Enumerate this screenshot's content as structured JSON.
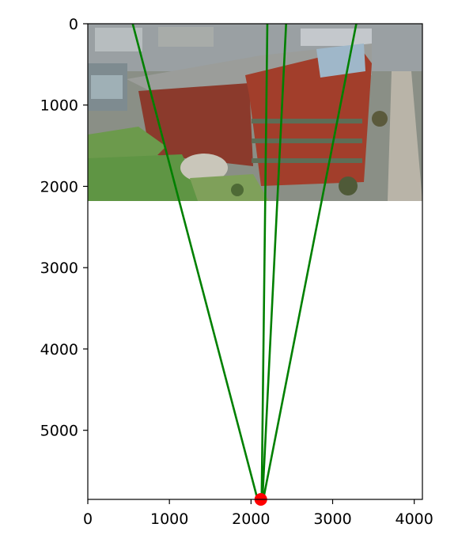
{
  "chart_data": {
    "type": "line",
    "title": "",
    "xlabel": "",
    "ylabel": "",
    "xlim": [
      0,
      4100
    ],
    "ylim": [
      5850,
      0
    ],
    "y_inverted": true,
    "xticks": [
      0,
      1000,
      2000,
      3000,
      4000
    ],
    "yticks": [
      0,
      1000,
      2000,
      3000,
      4000,
      5000
    ],
    "xtick_labels": [
      "0",
      "1000",
      "2000",
      "3000",
      "4000"
    ],
    "ytick_labels": [
      "0",
      "1000",
      "2000",
      "3000",
      "4000",
      "5000"
    ],
    "grid": false,
    "background_image": {
      "description_icon": "aerial-campus-photo",
      "extent": {
        "x": [
          0,
          4100
        ],
        "y": [
          0,
          2160
        ]
      }
    },
    "vanishing_point": {
      "x": 2120,
      "y": 5850,
      "color": "#ff0000"
    },
    "lines_color": "#008000",
    "lines": [
      {
        "x": [
          550,
          2080
        ],
        "y": [
          0,
          5850
        ]
      },
      {
        "x": [
          2200,
          2130
        ],
        "y": [
          0,
          5850
        ]
      },
      {
        "x": [
          2430,
          2140
        ],
        "y": [
          0,
          5850
        ]
      },
      {
        "x": [
          3290,
          2150
        ],
        "y": [
          0,
          5850
        ]
      }
    ]
  }
}
